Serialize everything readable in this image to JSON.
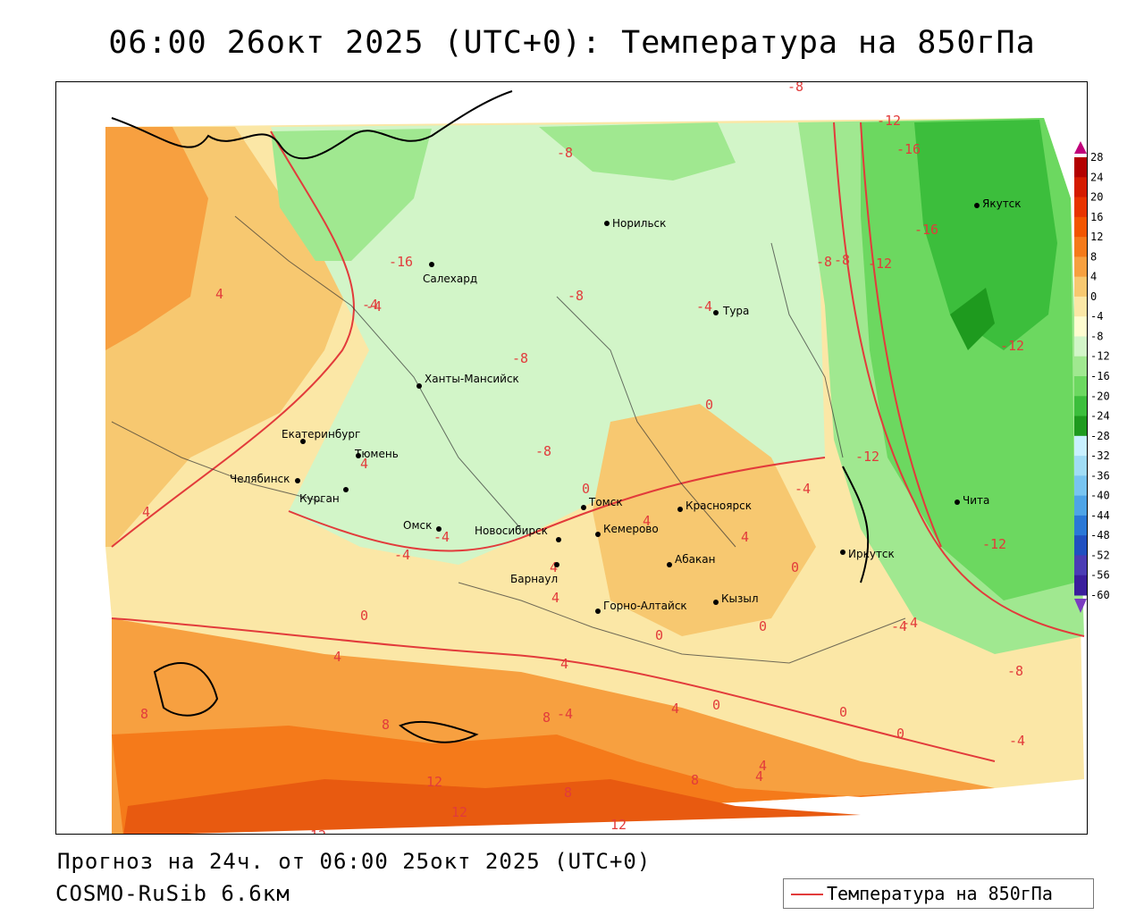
{
  "title": "06:00 26окт 2025 (UTC+0): Температура на 850гПа",
  "footer": {
    "forecast": "Прогноз на 24ч. от 06:00 25окт 2025 (UTC+0)",
    "model": "COSMO-RuSib 6.6км"
  },
  "legend": {
    "label": "Температура на 850гПа",
    "color": "#e23b3b"
  },
  "colorbar": {
    "ticks": [
      "28",
      "24",
      "20",
      "16",
      "12",
      "8",
      "4",
      "0",
      "-4",
      "-8",
      "-12",
      "-16",
      "-20",
      "-24",
      "-28",
      "-32",
      "-36",
      "-40",
      "-44",
      "-48",
      "-52",
      "-56",
      "-60"
    ],
    "colors": [
      "#b30000",
      "#d41a00",
      "#e83300",
      "#f25500",
      "#f57a1a",
      "#f7a040",
      "#f7c870",
      "#fbe7a6",
      "#fefcd0",
      "#d2f5c8",
      "#a0e890",
      "#6cd860",
      "#3cbe3c",
      "#1e9a1e",
      "#c8f0ff",
      "#a0dcf5",
      "#78c4f0",
      "#4ea4e6",
      "#2a78d6",
      "#2050c0",
      "#4a3cb4",
      "#3a1e9c",
      "#5a1e9c"
    ]
  },
  "cities": [
    {
      "name": "Норильск"
    },
    {
      "name": "Салехард"
    },
    {
      "name": "Тура"
    },
    {
      "name": "Якутск"
    },
    {
      "name": "Ханты-Мансийск"
    },
    {
      "name": "Екатеринбург"
    },
    {
      "name": "Тюмень"
    },
    {
      "name": "Челябинск"
    },
    {
      "name": "Курган"
    },
    {
      "name": "Омск"
    },
    {
      "name": "Новосибирск"
    },
    {
      "name": "Томск"
    },
    {
      "name": "Кемерово"
    },
    {
      "name": "Красноярск"
    },
    {
      "name": "Абакан"
    },
    {
      "name": "Барнаул"
    },
    {
      "name": "Горно-Алтайск"
    },
    {
      "name": "Кызыл"
    },
    {
      "name": "Иркутск"
    },
    {
      "name": "Чита"
    }
  ],
  "contour_labels": [
    "-8",
    "-8",
    "-12",
    "-16",
    "-16",
    "-8",
    "-12",
    "-4",
    "-8",
    "-8",
    "-4",
    "0",
    "-8",
    "-4",
    "-12",
    "-16",
    "4",
    "4",
    "4",
    "-4",
    "-4",
    "-4",
    "0",
    "4",
    "4",
    "0",
    "4",
    "0",
    "-4",
    "0",
    "4",
    "8",
    "8",
    "4",
    "0",
    "8",
    "8",
    "12",
    "12",
    "12",
    "4",
    "4",
    "8",
    "0",
    "0",
    "0",
    "-8",
    "-4",
    "4",
    "4",
    "-12",
    "12",
    "-12",
    "-4",
    "-4",
    "-8"
  ]
}
